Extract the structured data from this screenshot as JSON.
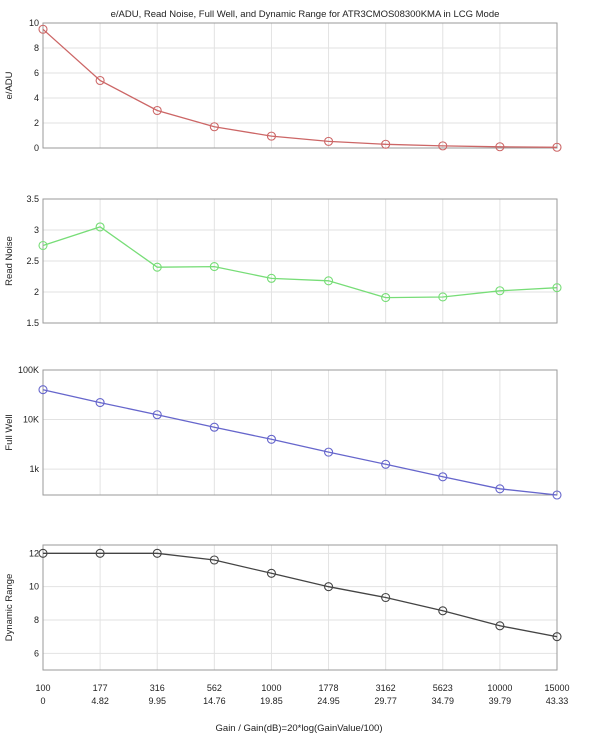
{
  "title": "e/ADU, Read Noise, Full Well, and Dynamic Range for ATR3CMOS08300KMA in LCG Mode",
  "xlabel": "Gain / Gain(dB)=20*log(GainValue/100)",
  "x_ticks": {
    "gain": [
      "100",
      "177",
      "316",
      "562",
      "1000",
      "1778",
      "3162",
      "5623",
      "10000",
      "15000"
    ],
    "gain_db": [
      "0",
      "4.82",
      "9.95",
      "14.76",
      "19.85",
      "24.95",
      "29.77",
      "34.79",
      "39.79",
      "43.33"
    ]
  },
  "chart_data": [
    {
      "type": "line",
      "ylabel": "e/ADU",
      "color": "#cc6666",
      "ylim": [
        0,
        10
      ],
      "yscale": "linear",
      "yticks": [
        0,
        2,
        4,
        6,
        8,
        10
      ],
      "ytick_labels": [
        "0",
        "2",
        "4",
        "6",
        "8",
        "10"
      ],
      "grid": true,
      "values": [
        9.5,
        5.4,
        3.0,
        1.7,
        0.95,
        0.53,
        0.3,
        0.17,
        0.1,
        0.06
      ]
    },
    {
      "type": "line",
      "ylabel": "Read Noise",
      "color": "#77dd77",
      "ylim": [
        1.5,
        3.5
      ],
      "yscale": "linear",
      "yticks": [
        1.5,
        2,
        2.5,
        3,
        3.5
      ],
      "ytick_labels": [
        "1.5",
        "2",
        "2.5",
        "3",
        "3.5"
      ],
      "grid": true,
      "values": [
        2.75,
        3.05,
        2.4,
        2.41,
        2.22,
        2.18,
        1.91,
        1.92,
        2.02,
        2.07
      ]
    },
    {
      "type": "line",
      "ylabel": "Full Well",
      "color": "#6666cc",
      "ylim": [
        300,
        100000
      ],
      "yscale": "log",
      "yticks": [
        1000,
        10000,
        100000
      ],
      "ytick_labels": [
        "1k",
        "10K",
        "100K"
      ],
      "grid": true,
      "values": [
        40000,
        22000,
        12500,
        7000,
        4000,
        2200,
        1250,
        700,
        400,
        300
      ]
    },
    {
      "type": "line",
      "ylabel": "Dynamic Range",
      "color": "#444444",
      "ylim": [
        5,
        12.5
      ],
      "yscale": "linear",
      "yticks": [
        6,
        8,
        10,
        12
      ],
      "ytick_labels": [
        "6",
        "8",
        "10",
        "12"
      ],
      "grid": true,
      "values": [
        12.0,
        12.0,
        12.0,
        11.6,
        10.8,
        10.0,
        9.35,
        8.55,
        7.65,
        7.0
      ]
    }
  ]
}
